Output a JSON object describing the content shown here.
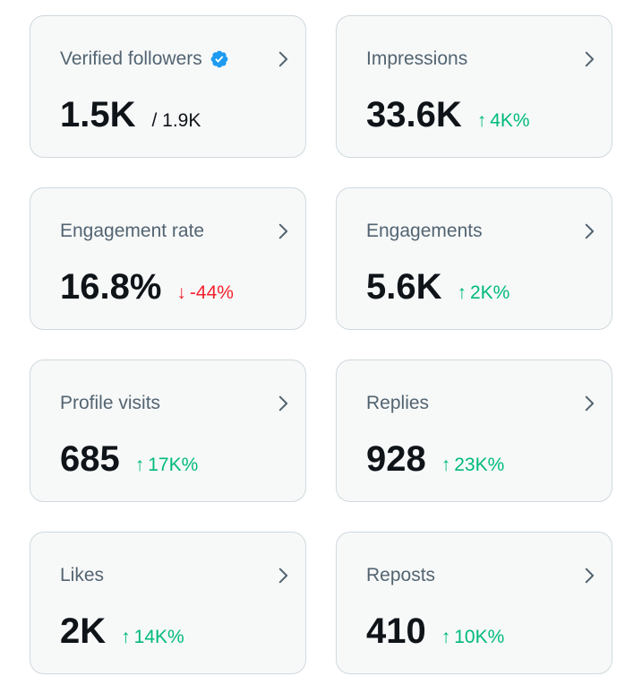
{
  "colors": {
    "card_background": "#f7f9f9",
    "card_border": "#cfd9de",
    "label": "#536471",
    "value": "#0f1419",
    "positive": "#00ba7c",
    "negative": "#f4212e",
    "verified_badge": "#1d9bf0"
  },
  "cards": [
    {
      "title": "Verified followers",
      "value": "1.5K",
      "secondary": "/ 1.9K",
      "icon": "verified-badge-icon"
    },
    {
      "title": "Impressions",
      "value": "33.6K",
      "change": {
        "direction": "up",
        "arrow": "↑",
        "text": "4K%"
      }
    },
    {
      "title": "Engagement rate",
      "value": "16.8%",
      "change": {
        "direction": "down",
        "arrow": "↓",
        "text": "-44%"
      }
    },
    {
      "title": "Engagements",
      "value": "5.6K",
      "change": {
        "direction": "up",
        "arrow": "↑",
        "text": "2K%"
      }
    },
    {
      "title": "Profile visits",
      "value": "685",
      "change": {
        "direction": "up",
        "arrow": "↑",
        "text": "17K%"
      }
    },
    {
      "title": "Replies",
      "value": "928",
      "change": {
        "direction": "up",
        "arrow": "↑",
        "text": "23K%"
      }
    },
    {
      "title": "Likes",
      "value": "2K",
      "change": {
        "direction": "up",
        "arrow": "↑",
        "text": "14K%"
      }
    },
    {
      "title": "Reposts",
      "value": "410",
      "change": {
        "direction": "up",
        "arrow": "↑",
        "text": "10K%"
      }
    }
  ]
}
